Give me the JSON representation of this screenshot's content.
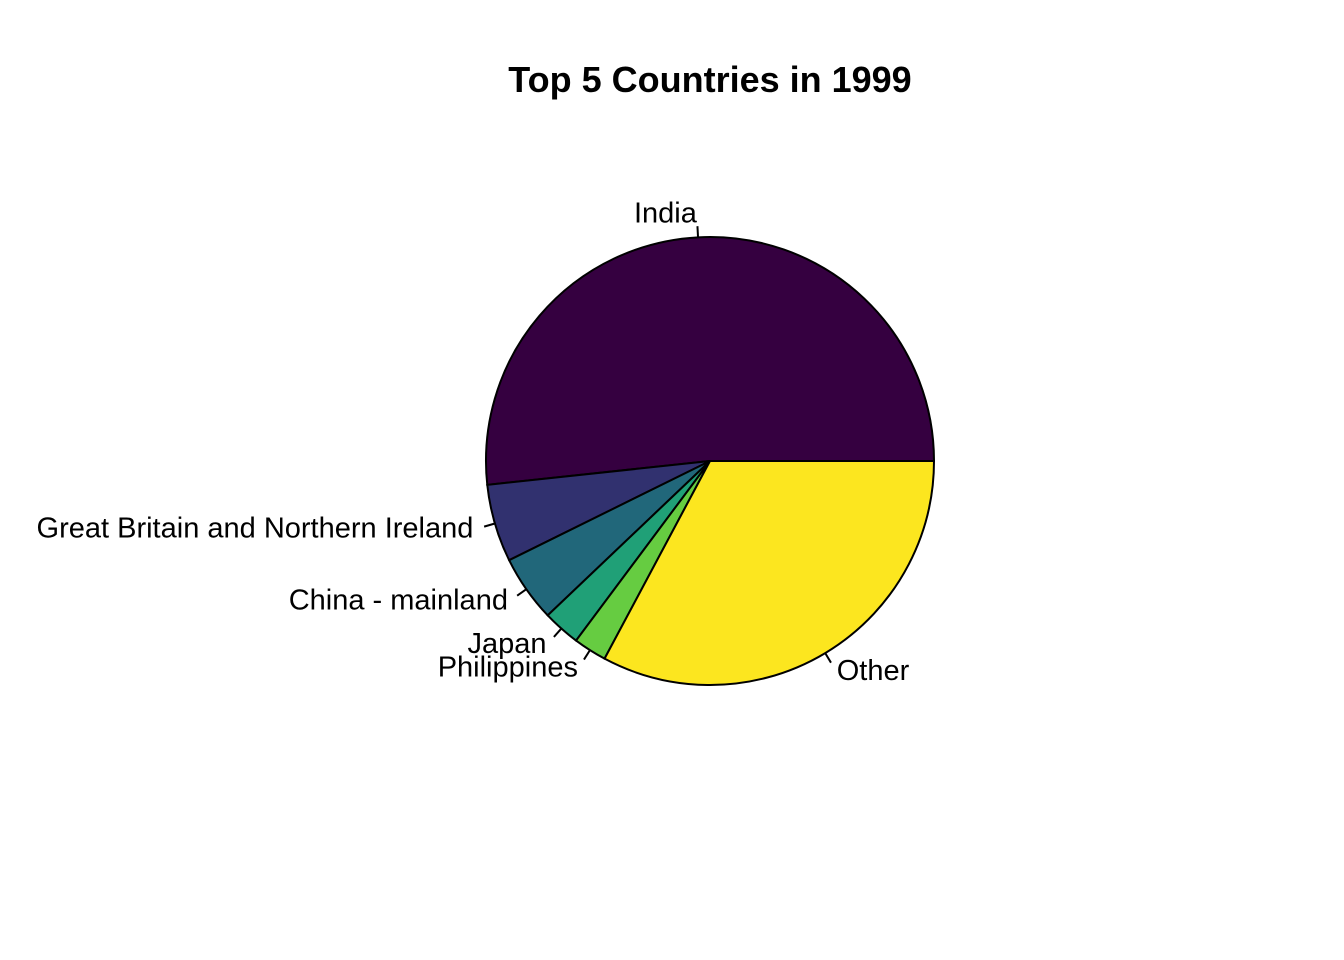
{
  "chart_data": {
    "type": "pie",
    "title": "Top 5 Countries in 1999",
    "start_angle_deg": 0,
    "direction": "counterclockwise",
    "slices": [
      {
        "label": "India",
        "value": 51.7,
        "color": "#350040"
      },
      {
        "label": "Great Britain and Northern Ireland",
        "value": 5.6,
        "color": "#31316F"
      },
      {
        "label": "China - mainland",
        "value": 4.8,
        "color": "#21677A"
      },
      {
        "label": "Japan",
        "value": 2.7,
        "color": "#20A077"
      },
      {
        "label": "Philippines",
        "value": 2.4,
        "color": "#66CC41"
      },
      {
        "label": "Other",
        "value": 32.8,
        "color": "#FCE61F"
      }
    ],
    "slice_border_color": "#000000",
    "legend": "none"
  }
}
